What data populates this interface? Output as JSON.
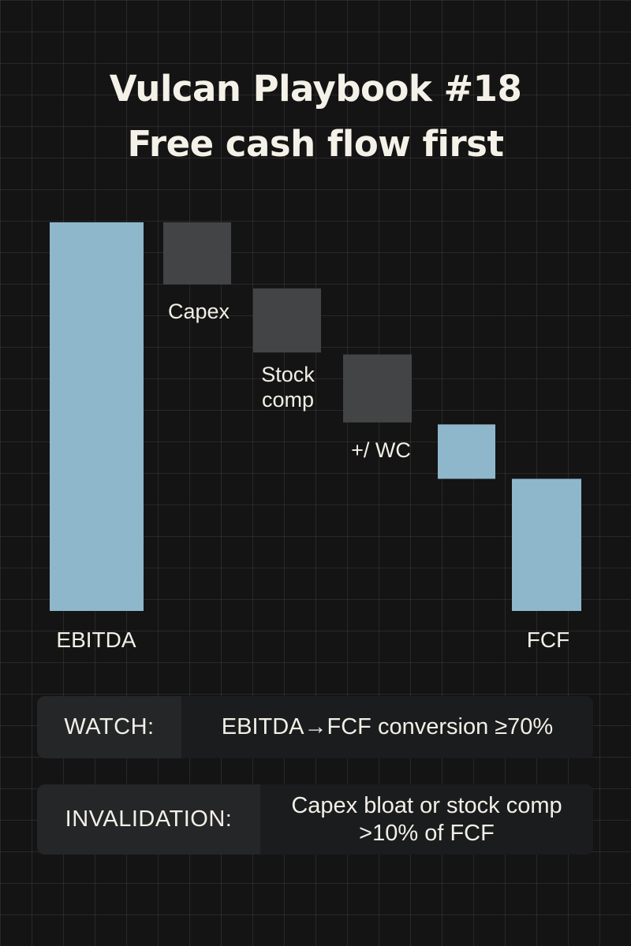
{
  "title": {
    "line1": "Vulcan Playbook #18",
    "line2": "Free cash flow first"
  },
  "chart_data": {
    "type": "waterfall",
    "categories": [
      "EBITDA",
      "Capex",
      "Stock comp",
      "+/ WC",
      "",
      "FCF"
    ],
    "category_lines": [
      [
        "EBITDA"
      ],
      [
        "Capex"
      ],
      [
        "Stock",
        "comp"
      ],
      [
        "+/ WC"
      ],
      [],
      [
        "FCF"
      ]
    ],
    "steps": [
      {
        "label": "EBITDA",
        "kind": "total",
        "start": 0,
        "end": 100,
        "color": "#8fb7cb"
      },
      {
        "label": "Capex",
        "kind": "decrease",
        "start": 100,
        "end": 84,
        "color": "#434446"
      },
      {
        "label": "Stock comp",
        "kind": "decrease",
        "start": 83,
        "end": 66.5,
        "color": "#434446"
      },
      {
        "label": "+/ WC",
        "kind": "decrease",
        "start": 66,
        "end": 48.5,
        "color": "#434446"
      },
      {
        "label": "",
        "kind": "change",
        "start": 48,
        "end": 34,
        "color": "#8fb7cb"
      },
      {
        "label": "FCF",
        "kind": "total",
        "start": 0,
        "end": 34,
        "color": "#8fb7cb"
      }
    ],
    "ylim": [
      0,
      100
    ],
    "grid": true,
    "colors": {
      "positive": "#8fb7cb",
      "negative": "#434446"
    }
  },
  "watch": {
    "label": "WATCH:",
    "value": "EBITDA→FCF conversion ≥70%"
  },
  "invalidation": {
    "label": "INVALIDATION:",
    "value": "Capex bloat or stock comp >10% of FCF"
  }
}
